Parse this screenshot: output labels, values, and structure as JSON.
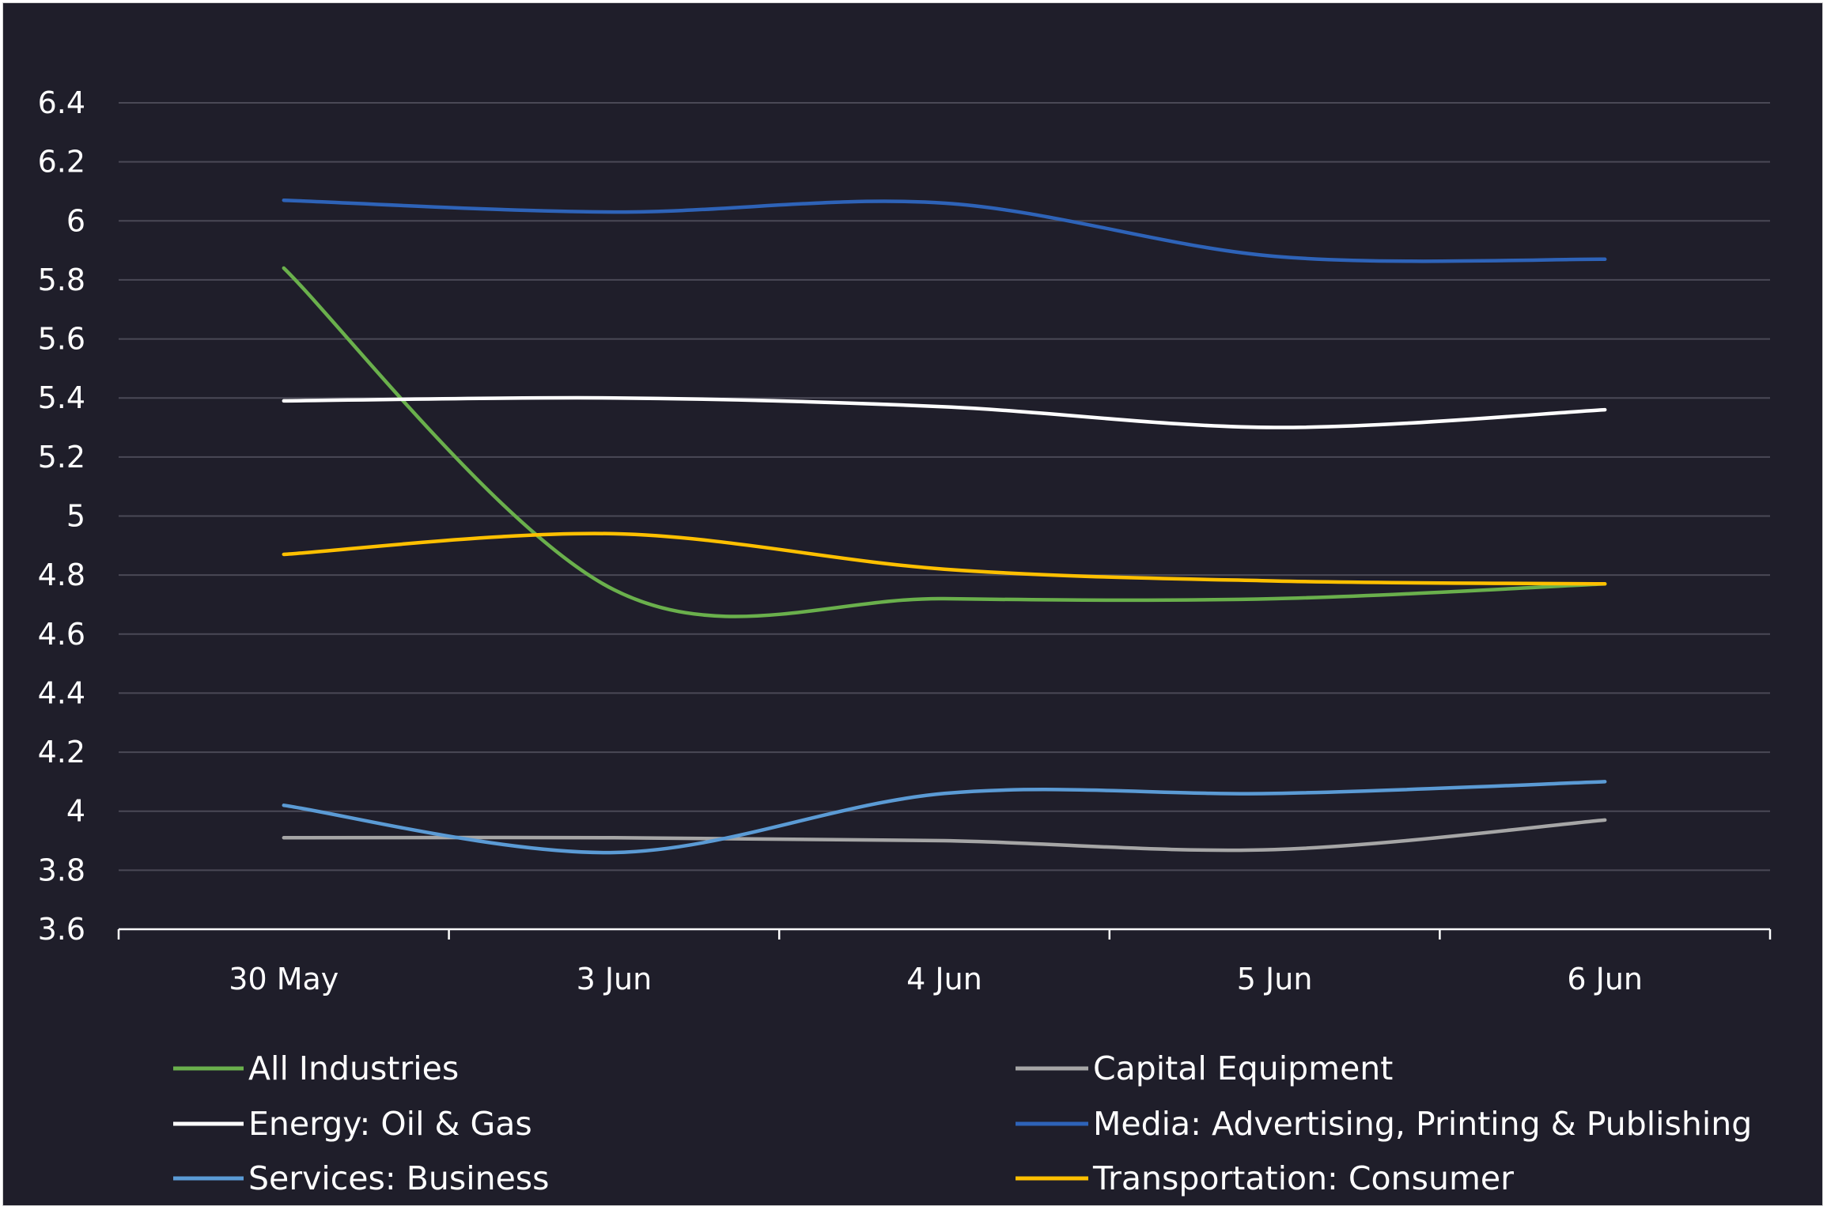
{
  "chart_data": {
    "type": "line",
    "title": "",
    "xlabel": "",
    "ylabel": "",
    "categories": [
      "30 May",
      "3 Jun",
      "4 Jun",
      "5 Jun",
      "6 Jun"
    ],
    "ylim": [
      3.6,
      6.4
    ],
    "yticks": [
      "6.4",
      "6.2",
      "6",
      "5.8",
      "5.6",
      "5.4",
      "5.2",
      "5",
      "4.8",
      "4.6",
      "4.4",
      "4.2",
      "4",
      "3.8",
      "3.6"
    ],
    "grid": true,
    "legend_position": "bottom",
    "series": [
      {
        "name": "All Industries",
        "color": "#6ab04c",
        "values": [
          5.84,
          4.75,
          4.72,
          4.72,
          4.77
        ]
      },
      {
        "name": "Capital Equipment",
        "color": "#a6a6a6",
        "values": [
          3.91,
          3.91,
          3.9,
          3.87,
          3.97
        ]
      },
      {
        "name": "Energy: Oil & Gas",
        "color": "#ffffff",
        "values": [
          5.39,
          5.4,
          5.37,
          5.3,
          5.36
        ]
      },
      {
        "name": "Media: Advertising, Printing & Publishing",
        "color": "#2e63b8",
        "values": [
          6.07,
          6.03,
          6.06,
          5.88,
          5.87
        ]
      },
      {
        "name": "Services: Business",
        "color": "#5b9bd5",
        "values": [
          4.02,
          3.86,
          4.06,
          4.06,
          4.1
        ]
      },
      {
        "name": "Transportation: Consumer",
        "color": "#ffc000",
        "values": [
          4.87,
          4.94,
          4.82,
          4.78,
          4.77
        ]
      }
    ]
  }
}
